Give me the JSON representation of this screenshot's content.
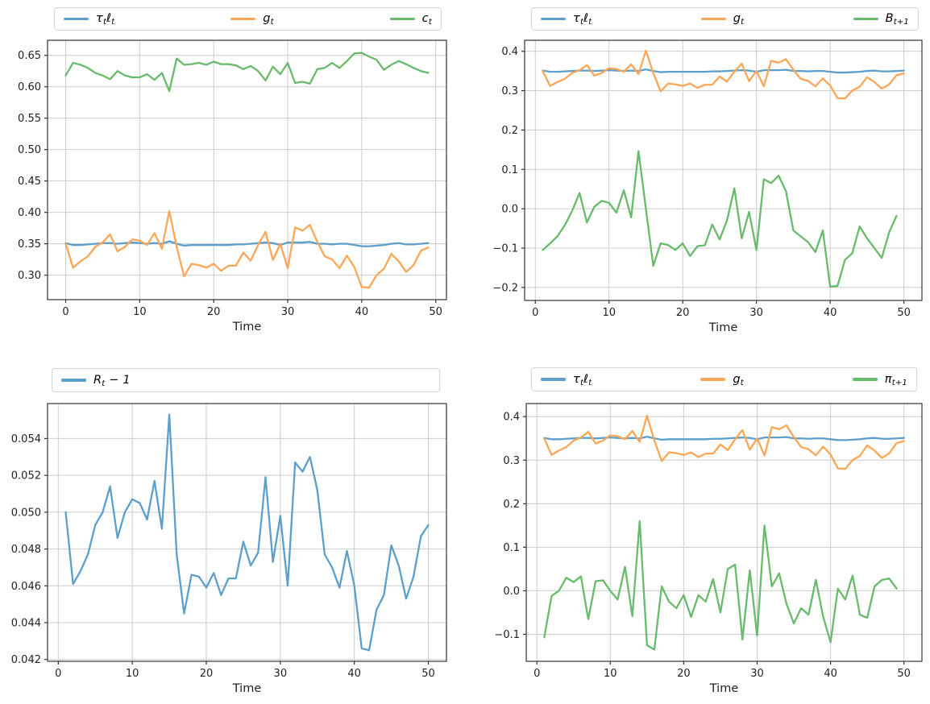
{
  "style": {
    "background": "#ffffff",
    "grid_color": "#cccccc",
    "axis_color": "#333333",
    "tick_text_color": "#1f1f1f",
    "legend_border_color": "#d4d4d4",
    "series_colors": {
      "blue": "#5b9fca",
      "orange": "#ffa656",
      "green": "#67bb6a"
    }
  },
  "chart_data": [
    {
      "type": "line",
      "position": "top-left",
      "xlabel": "Time",
      "x_start": 0,
      "xlim": [
        -2.45,
        51.45
      ],
      "ylim": [
        0.261,
        0.674
      ],
      "xticks": [
        0,
        10,
        20,
        30,
        40,
        50
      ],
      "yticks": [
        0.3,
        0.35,
        0.4,
        0.45,
        0.5,
        0.55,
        0.6,
        0.65
      ],
      "ytick_decimals": 2,
      "grid": true,
      "legend_position": "above",
      "series": [
        {
          "name": "τ{t}ℓ{t}",
          "color": "#5b9fca",
          "values": [
            0.351,
            0.348,
            0.348,
            0.349,
            0.35,
            0.351,
            0.351,
            0.35,
            0.351,
            0.352,
            0.351,
            0.35,
            0.351,
            0.35,
            0.354,
            0.35,
            0.347,
            0.348,
            0.348,
            0.348,
            0.348,
            0.348,
            0.348,
            0.349,
            0.349,
            0.35,
            0.351,
            0.352,
            0.351,
            0.348,
            0.352,
            0.352,
            0.352,
            0.353,
            0.35,
            0.35,
            0.349,
            0.35,
            0.35,
            0.348,
            0.346,
            0.346,
            0.347,
            0.348,
            0.35,
            0.351,
            0.349,
            0.349,
            0.35,
            0.351
          ]
        },
        {
          "name": "g{t}",
          "color": "#ffa656",
          "values": [
            0.35,
            0.312,
            0.322,
            0.33,
            0.345,
            0.352,
            0.365,
            0.338,
            0.345,
            0.357,
            0.355,
            0.348,
            0.367,
            0.342,
            0.402,
            0.345,
            0.298,
            0.318,
            0.316,
            0.312,
            0.318,
            0.307,
            0.315,
            0.315,
            0.336,
            0.323,
            0.348,
            0.369,
            0.324,
            0.35,
            0.311,
            0.376,
            0.371,
            0.38,
            0.353,
            0.33,
            0.325,
            0.311,
            0.331,
            0.313,
            0.281,
            0.28,
            0.3,
            0.31,
            0.334,
            0.322,
            0.305,
            0.316,
            0.339,
            0.344
          ]
        },
        {
          "name": "c{t}",
          "color": "#67bb6a",
          "values": [
            0.618,
            0.638,
            0.635,
            0.63,
            0.622,
            0.618,
            0.612,
            0.625,
            0.618,
            0.615,
            0.615,
            0.62,
            0.611,
            0.622,
            0.593,
            0.645,
            0.635,
            0.636,
            0.638,
            0.635,
            0.64,
            0.636,
            0.636,
            0.634,
            0.628,
            0.633,
            0.625,
            0.61,
            0.632,
            0.62,
            0.638,
            0.606,
            0.608,
            0.605,
            0.628,
            0.63,
            0.638,
            0.63,
            0.641,
            0.653,
            0.654,
            0.648,
            0.643,
            0.627,
            0.635,
            0.641,
            0.636,
            0.63,
            0.625,
            0.622
          ]
        }
      ]
    },
    {
      "type": "line",
      "position": "top-right",
      "xlabel": "Time",
      "x_start": 1,
      "xlim": [
        -1.45,
        52.45
      ],
      "ylim": [
        -0.233,
        0.428
      ],
      "xticks": [
        0,
        10,
        20,
        30,
        40,
        50
      ],
      "yticks": [
        -0.2,
        -0.1,
        0.0,
        0.1,
        0.2,
        0.3,
        0.4
      ],
      "ytick_decimals": 1,
      "grid": true,
      "legend_position": "above",
      "series": [
        {
          "name": "τ{t}ℓ{t}",
          "color": "#5b9fca",
          "values": [
            0.351,
            0.348,
            0.348,
            0.349,
            0.35,
            0.351,
            0.351,
            0.35,
            0.351,
            0.352,
            0.351,
            0.35,
            0.351,
            0.35,
            0.354,
            0.35,
            0.347,
            0.348,
            0.348,
            0.348,
            0.348,
            0.348,
            0.348,
            0.349,
            0.349,
            0.35,
            0.351,
            0.352,
            0.351,
            0.348,
            0.352,
            0.352,
            0.352,
            0.353,
            0.35,
            0.35,
            0.349,
            0.35,
            0.35,
            0.348,
            0.346,
            0.346,
            0.347,
            0.348,
            0.35,
            0.351,
            0.349,
            0.349,
            0.35,
            0.351
          ]
        },
        {
          "name": "g{t}",
          "color": "#ffa656",
          "values": [
            0.35,
            0.312,
            0.322,
            0.33,
            0.345,
            0.352,
            0.365,
            0.338,
            0.345,
            0.357,
            0.355,
            0.348,
            0.367,
            0.342,
            0.402,
            0.345,
            0.298,
            0.318,
            0.316,
            0.312,
            0.318,
            0.307,
            0.315,
            0.315,
            0.336,
            0.323,
            0.348,
            0.369,
            0.324,
            0.35,
            0.311,
            0.376,
            0.371,
            0.38,
            0.353,
            0.33,
            0.325,
            0.311,
            0.331,
            0.313,
            0.281,
            0.28,
            0.3,
            0.31,
            0.334,
            0.322,
            0.305,
            0.316,
            0.339,
            0.344
          ]
        },
        {
          "name": "B{t+1}",
          "color": "#67bb6a",
          "values": [
            -0.105,
            -0.088,
            -0.07,
            -0.042,
            -0.005,
            0.04,
            -0.035,
            0.005,
            0.02,
            0.015,
            -0.01,
            0.047,
            -0.022,
            0.146,
            0.0,
            -0.145,
            -0.088,
            -0.092,
            -0.105,
            -0.088,
            -0.12,
            -0.095,
            -0.093,
            -0.04,
            -0.078,
            -0.03,
            0.052,
            -0.075,
            -0.008,
            -0.105,
            0.075,
            0.065,
            0.084,
            0.045,
            -0.055,
            -0.07,
            -0.085,
            -0.11,
            -0.055,
            -0.198,
            -0.196,
            -0.13,
            -0.113,
            -0.045,
            -0.075,
            -0.1,
            -0.125,
            -0.06,
            -0.018
          ]
        }
      ]
    },
    {
      "type": "line",
      "position": "bottom-left",
      "xlabel": "Time",
      "x_start": 1,
      "xlim": [
        -1.45,
        52.45
      ],
      "ylim": [
        0.0419,
        0.0559
      ],
      "xticks": [
        0,
        10,
        20,
        30,
        40,
        50
      ],
      "yticks": [
        0.042,
        0.044,
        0.046,
        0.048,
        0.05,
        0.052,
        0.054
      ],
      "ytick_decimals": 3,
      "grid": true,
      "legend_position": "above",
      "series": [
        {
          "name": "R{t} − 1",
          "color": "#5b9fca",
          "values": [
            0.05,
            0.0461,
            0.0468,
            0.0477,
            0.0493,
            0.05,
            0.0514,
            0.0486,
            0.05,
            0.0507,
            0.0505,
            0.0496,
            0.0517,
            0.0491,
            0.0553,
            0.0477,
            0.0445,
            0.0466,
            0.0465,
            0.0459,
            0.0467,
            0.0455,
            0.0464,
            0.0464,
            0.0484,
            0.0471,
            0.0478,
            0.0519,
            0.0473,
            0.0498,
            0.046,
            0.0527,
            0.0522,
            0.053,
            0.0512,
            0.0477,
            0.047,
            0.0459,
            0.0479,
            0.046,
            0.0426,
            0.0425,
            0.0447,
            0.0455,
            0.0482,
            0.0471,
            0.0453,
            0.0465,
            0.0487,
            0.0493
          ]
        }
      ]
    },
    {
      "type": "line",
      "position": "bottom-right",
      "xlabel": "Time",
      "x_start": 1,
      "xlim": [
        -1.45,
        52.45
      ],
      "ylim": [
        -0.162,
        0.43
      ],
      "xticks": [
        0,
        10,
        20,
        30,
        40,
        50
      ],
      "yticks": [
        -0.1,
        0.0,
        0.1,
        0.2,
        0.3,
        0.4
      ],
      "ytick_decimals": 1,
      "grid": true,
      "legend_position": "above",
      "series": [
        {
          "name": "τ{t}ℓ{t}",
          "color": "#5b9fca",
          "values": [
            0.351,
            0.348,
            0.348,
            0.349,
            0.35,
            0.351,
            0.351,
            0.35,
            0.351,
            0.352,
            0.351,
            0.35,
            0.351,
            0.35,
            0.354,
            0.35,
            0.347,
            0.348,
            0.348,
            0.348,
            0.348,
            0.348,
            0.348,
            0.349,
            0.349,
            0.35,
            0.351,
            0.352,
            0.351,
            0.348,
            0.352,
            0.352,
            0.352,
            0.353,
            0.35,
            0.35,
            0.349,
            0.35,
            0.35,
            0.348,
            0.346,
            0.346,
            0.347,
            0.348,
            0.35,
            0.351,
            0.349,
            0.349,
            0.35,
            0.351
          ]
        },
        {
          "name": "g{t}",
          "color": "#ffa656",
          "values": [
            0.35,
            0.312,
            0.322,
            0.33,
            0.345,
            0.352,
            0.365,
            0.338,
            0.345,
            0.357,
            0.355,
            0.348,
            0.367,
            0.342,
            0.402,
            0.345,
            0.298,
            0.318,
            0.316,
            0.312,
            0.318,
            0.307,
            0.315,
            0.315,
            0.336,
            0.323,
            0.348,
            0.369,
            0.324,
            0.35,
            0.311,
            0.376,
            0.371,
            0.38,
            0.353,
            0.33,
            0.325,
            0.311,
            0.331,
            0.313,
            0.281,
            0.28,
            0.3,
            0.31,
            0.334,
            0.322,
            0.305,
            0.316,
            0.339,
            0.344
          ]
        },
        {
          "name": "π{t+1}",
          "color": "#67bb6a",
          "values": [
            -0.107,
            -0.012,
            0.0,
            0.03,
            0.02,
            0.033,
            -0.065,
            0.022,
            0.024,
            0.0,
            -0.02,
            0.055,
            -0.058,
            0.16,
            -0.125,
            -0.135,
            0.01,
            -0.025,
            -0.04,
            -0.01,
            -0.06,
            -0.01,
            -0.025,
            0.027,
            -0.05,
            0.05,
            0.06,
            -0.112,
            0.047,
            -0.103,
            0.15,
            0.01,
            0.04,
            -0.03,
            -0.075,
            -0.04,
            -0.055,
            0.025,
            -0.06,
            -0.118,
            0.005,
            -0.02,
            0.035,
            -0.055,
            -0.062,
            0.01,
            0.025,
            0.028,
            0.005
          ]
        }
      ]
    }
  ]
}
